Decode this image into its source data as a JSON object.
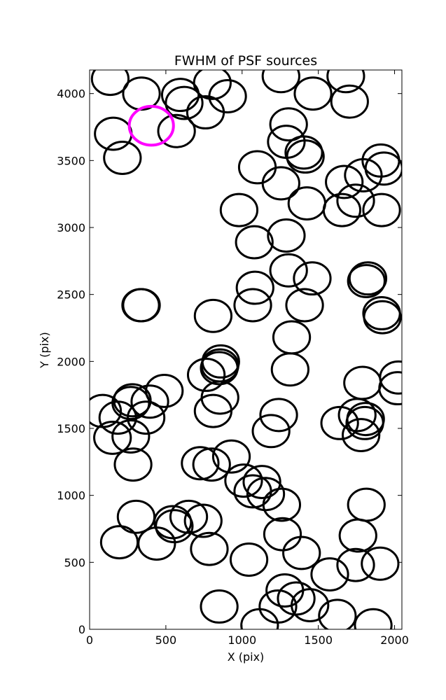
{
  "chart_data": {
    "type": "scatter",
    "title": "FWHM of PSF sources",
    "xlabel": "X (pix)",
    "ylabel": "Y (pix)",
    "xlim": [
      0,
      2048
    ],
    "ylim": [
      0,
      4176
    ],
    "xticks": [
      0,
      500,
      1000,
      1500,
      2000
    ],
    "yticks": [
      0,
      500,
      1000,
      1500,
      2000,
      2500,
      3000,
      3500,
      4000
    ],
    "grid": false,
    "marker": "open-circle",
    "default_color": "#000000",
    "highlight_color": "#ff00ff",
    "series": [
      {
        "color": "#000000",
        "points": [
          {
            "x": 135,
            "y": 4110,
            "r": 120
          },
          {
            "x": 340,
            "y": 4000,
            "r": 120
          },
          {
            "x": 595,
            "y": 3990,
            "r": 120
          },
          {
            "x": 805,
            "y": 4080,
            "r": 120
          },
          {
            "x": 905,
            "y": 3980,
            "r": 120
          },
          {
            "x": 620,
            "y": 3930,
            "r": 120
          },
          {
            "x": 760,
            "y": 3860,
            "r": 120
          },
          {
            "x": 155,
            "y": 3700,
            "r": 120
          },
          {
            "x": 570,
            "y": 3720,
            "r": 120
          },
          {
            "x": 215,
            "y": 3520,
            "r": 120
          },
          {
            "x": 1255,
            "y": 4130,
            "r": 120
          },
          {
            "x": 1465,
            "y": 4000,
            "r": 120
          },
          {
            "x": 1680,
            "y": 4130,
            "r": 120
          },
          {
            "x": 1705,
            "y": 3940,
            "r": 120
          },
          {
            "x": 1305,
            "y": 3770,
            "r": 120
          },
          {
            "x": 1290,
            "y": 3640,
            "r": 120
          },
          {
            "x": 1405,
            "y": 3560,
            "r": 120
          },
          {
            "x": 1415,
            "y": 3530,
            "r": 120
          },
          {
            "x": 1100,
            "y": 3450,
            "r": 120
          },
          {
            "x": 1910,
            "y": 3500,
            "r": 120
          },
          {
            "x": 1930,
            "y": 3440,
            "r": 120
          },
          {
            "x": 1255,
            "y": 3330,
            "r": 120
          },
          {
            "x": 1670,
            "y": 3340,
            "r": 120
          },
          {
            "x": 1795,
            "y": 3390,
            "r": 120
          },
          {
            "x": 1425,
            "y": 3180,
            "r": 120
          },
          {
            "x": 1655,
            "y": 3130,
            "r": 120
          },
          {
            "x": 1745,
            "y": 3200,
            "r": 120
          },
          {
            "x": 1915,
            "y": 3130,
            "r": 120
          },
          {
            "x": 980,
            "y": 3130,
            "r": 120
          },
          {
            "x": 1080,
            "y": 2890,
            "r": 120
          },
          {
            "x": 1290,
            "y": 2940,
            "r": 120
          },
          {
            "x": 1305,
            "y": 2680,
            "r": 120
          },
          {
            "x": 1460,
            "y": 2620,
            "r": 120
          },
          {
            "x": 1085,
            "y": 2550,
            "r": 120
          },
          {
            "x": 1070,
            "y": 2420,
            "r": 120
          },
          {
            "x": 1410,
            "y": 2420,
            "r": 120
          },
          {
            "x": 1825,
            "y": 2620,
            "r": 120
          },
          {
            "x": 1815,
            "y": 2600,
            "r": 120
          },
          {
            "x": 1915,
            "y": 2360,
            "r": 120
          },
          {
            "x": 1920,
            "y": 2330,
            "r": 120
          },
          {
            "x": 335,
            "y": 2420,
            "r": 120
          },
          {
            "x": 340,
            "y": 2420,
            "r": 120
          },
          {
            "x": 810,
            "y": 2340,
            "r": 120
          },
          {
            "x": 1325,
            "y": 2180,
            "r": 120
          },
          {
            "x": 1315,
            "y": 1940,
            "r": 120
          },
          {
            "x": 860,
            "y": 2000,
            "r": 120
          },
          {
            "x": 855,
            "y": 1970,
            "r": 120
          },
          {
            "x": 850,
            "y": 1950,
            "r": 120
          },
          {
            "x": 765,
            "y": 1900,
            "r": 120
          },
          {
            "x": 2025,
            "y": 1880,
            "r": 120
          },
          {
            "x": 2020,
            "y": 1800,
            "r": 120
          },
          {
            "x": 1790,
            "y": 1840,
            "r": 120
          },
          {
            "x": 85,
            "y": 1630,
            "r": 120
          },
          {
            "x": 185,
            "y": 1580,
            "r": 120
          },
          {
            "x": 270,
            "y": 1690,
            "r": 120
          },
          {
            "x": 280,
            "y": 1710,
            "r": 120
          },
          {
            "x": 395,
            "y": 1700,
            "r": 120
          },
          {
            "x": 490,
            "y": 1780,
            "r": 120
          },
          {
            "x": 370,
            "y": 1580,
            "r": 120
          },
          {
            "x": 855,
            "y": 1730,
            "r": 120
          },
          {
            "x": 810,
            "y": 1630,
            "r": 120
          },
          {
            "x": 1240,
            "y": 1600,
            "r": 120
          },
          {
            "x": 1190,
            "y": 1480,
            "r": 120
          },
          {
            "x": 270,
            "y": 1440,
            "r": 120
          },
          {
            "x": 150,
            "y": 1430,
            "r": 120
          },
          {
            "x": 1640,
            "y": 1540,
            "r": 120
          },
          {
            "x": 1755,
            "y": 1600,
            "r": 120
          },
          {
            "x": 1810,
            "y": 1570,
            "r": 120
          },
          {
            "x": 1805,
            "y": 1540,
            "r": 120
          },
          {
            "x": 1780,
            "y": 1450,
            "r": 120
          },
          {
            "x": 285,
            "y": 1230,
            "r": 120
          },
          {
            "x": 725,
            "y": 1240,
            "r": 120
          },
          {
            "x": 800,
            "y": 1230,
            "r": 120
          },
          {
            "x": 930,
            "y": 1290,
            "r": 120
          },
          {
            "x": 1010,
            "y": 1110,
            "r": 120
          },
          {
            "x": 1130,
            "y": 1100,
            "r": 120
          },
          {
            "x": 1070,
            "y": 1030,
            "r": 120
          },
          {
            "x": 1155,
            "y": 1010,
            "r": 120
          },
          {
            "x": 1260,
            "y": 930,
            "r": 120
          },
          {
            "x": 1815,
            "y": 930,
            "r": 120
          },
          {
            "x": 305,
            "y": 840,
            "r": 120
          },
          {
            "x": 545,
            "y": 800,
            "r": 120
          },
          {
            "x": 555,
            "y": 770,
            "r": 120
          },
          {
            "x": 650,
            "y": 840,
            "r": 120
          },
          {
            "x": 745,
            "y": 810,
            "r": 120
          },
          {
            "x": 195,
            "y": 650,
            "r": 120
          },
          {
            "x": 440,
            "y": 640,
            "r": 120
          },
          {
            "x": 785,
            "y": 600,
            "r": 120
          },
          {
            "x": 1265,
            "y": 710,
            "r": 120
          },
          {
            "x": 1390,
            "y": 570,
            "r": 120
          },
          {
            "x": 1760,
            "y": 700,
            "r": 120
          },
          {
            "x": 1045,
            "y": 520,
            "r": 120
          },
          {
            "x": 1575,
            "y": 410,
            "r": 120
          },
          {
            "x": 1745,
            "y": 480,
            "r": 120
          },
          {
            "x": 1905,
            "y": 490,
            "r": 120
          },
          {
            "x": 1280,
            "y": 290,
            "r": 120
          },
          {
            "x": 1355,
            "y": 230,
            "r": 120
          },
          {
            "x": 1445,
            "y": 180,
            "r": 120
          },
          {
            "x": 1235,
            "y": 170,
            "r": 120
          },
          {
            "x": 850,
            "y": 170,
            "r": 120
          },
          {
            "x": 1625,
            "y": 100,
            "r": 120
          },
          {
            "x": 1115,
            "y": 30,
            "r": 120
          },
          {
            "x": 1860,
            "y": 30,
            "r": 120
          }
        ]
      },
      {
        "color": "#ff00ff",
        "points": [
          {
            "x": 405,
            "y": 3760,
            "r": 145
          }
        ]
      }
    ]
  }
}
